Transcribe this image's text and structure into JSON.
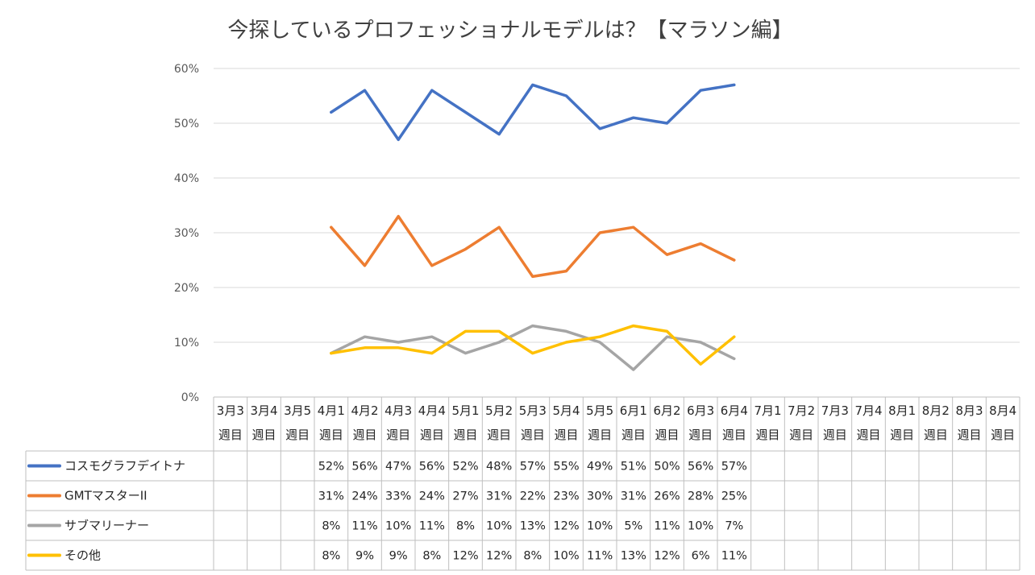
{
  "chart_data": {
    "type": "line",
    "title": "今探しているプロフェッショナルモデルは？【マラソン編】",
    "ylim": [
      0,
      0.6
    ],
    "yticks": [
      "0%",
      "10%",
      "20%",
      "30%",
      "40%",
      "50%",
      "60%"
    ],
    "grid": true,
    "legend": "bottom-left table",
    "categories": [
      [
        "3月3",
        "週目"
      ],
      [
        "3月4",
        "週目"
      ],
      [
        "3月5",
        "週目"
      ],
      [
        "4月1",
        "週目"
      ],
      [
        "4月2",
        "週目"
      ],
      [
        "4月3",
        "週目"
      ],
      [
        "4月4",
        "週目"
      ],
      [
        "5月1",
        "週目"
      ],
      [
        "5月2",
        "週目"
      ],
      [
        "5月3",
        "週目"
      ],
      [
        "5月4",
        "週目"
      ],
      [
        "5月5",
        "週目"
      ],
      [
        "6月1",
        "週目"
      ],
      [
        "6月2",
        "週目"
      ],
      [
        "6月3",
        "週目"
      ],
      [
        "6月4",
        "週目"
      ],
      [
        "7月1",
        "週目"
      ],
      [
        "7月2",
        "週目"
      ],
      [
        "7月3",
        "週目"
      ],
      [
        "7月4",
        "週目"
      ],
      [
        "8月1",
        "週目"
      ],
      [
        "8月2",
        "週目"
      ],
      [
        "8月3",
        "週目"
      ],
      [
        "8月4",
        "週目"
      ]
    ],
    "series": [
      {
        "name": "コスモグラフデイトナ",
        "color": "#4472C4",
        "values": [
          null,
          null,
          null,
          0.52,
          0.56,
          0.47,
          0.56,
          0.52,
          0.48,
          0.57,
          0.55,
          0.49,
          0.51,
          0.5,
          0.56,
          0.57,
          null,
          null,
          null,
          null,
          null,
          null,
          null,
          null
        ],
        "labels": [
          "",
          "",
          "",
          "52%",
          "56%",
          "47%",
          "56%",
          "52%",
          "48%",
          "57%",
          "55%",
          "49%",
          "51%",
          "50%",
          "56%",
          "57%",
          "",
          "",
          "",
          "",
          "",
          "",
          "",
          ""
        ]
      },
      {
        "name": "GMTマスターII",
        "color": "#ED7D31",
        "values": [
          null,
          null,
          null,
          0.31,
          0.24,
          0.33,
          0.24,
          0.27,
          0.31,
          0.22,
          0.23,
          0.3,
          0.31,
          0.26,
          0.28,
          0.25,
          null,
          null,
          null,
          null,
          null,
          null,
          null,
          null
        ],
        "labels": [
          "",
          "",
          "",
          "31%",
          "24%",
          "33%",
          "24%",
          "27%",
          "31%",
          "22%",
          "23%",
          "30%",
          "31%",
          "26%",
          "28%",
          "25%",
          "",
          "",
          "",
          "",
          "",
          "",
          "",
          ""
        ]
      },
      {
        "name": "サブマリーナー",
        "color": "#A5A5A5",
        "values": [
          null,
          null,
          null,
          0.08,
          0.11,
          0.1,
          0.11,
          0.08,
          0.1,
          0.13,
          0.12,
          0.1,
          0.05,
          0.11,
          0.1,
          0.07,
          null,
          null,
          null,
          null,
          null,
          null,
          null,
          null
        ],
        "labels": [
          "",
          "",
          "",
          "8%",
          "11%",
          "10%",
          "11%",
          "8%",
          "10%",
          "13%",
          "12%",
          "10%",
          "5%",
          "11%",
          "10%",
          "7%",
          "",
          "",
          "",
          "",
          "",
          "",
          "",
          ""
        ]
      },
      {
        "name": "その他",
        "color": "#FFC000",
        "values": [
          null,
          null,
          null,
          0.08,
          0.09,
          0.09,
          0.08,
          0.12,
          0.12,
          0.08,
          0.1,
          0.11,
          0.13,
          0.12,
          0.06,
          0.11,
          null,
          null,
          null,
          null,
          null,
          null,
          null,
          null
        ],
        "labels": [
          "",
          "",
          "",
          "8%",
          "9%",
          "9%",
          "8%",
          "12%",
          "12%",
          "8%",
          "10%",
          "11%",
          "13%",
          "12%",
          "6%",
          "11%",
          "",
          "",
          "",
          "",
          "",
          "",
          "",
          ""
        ]
      }
    ]
  }
}
